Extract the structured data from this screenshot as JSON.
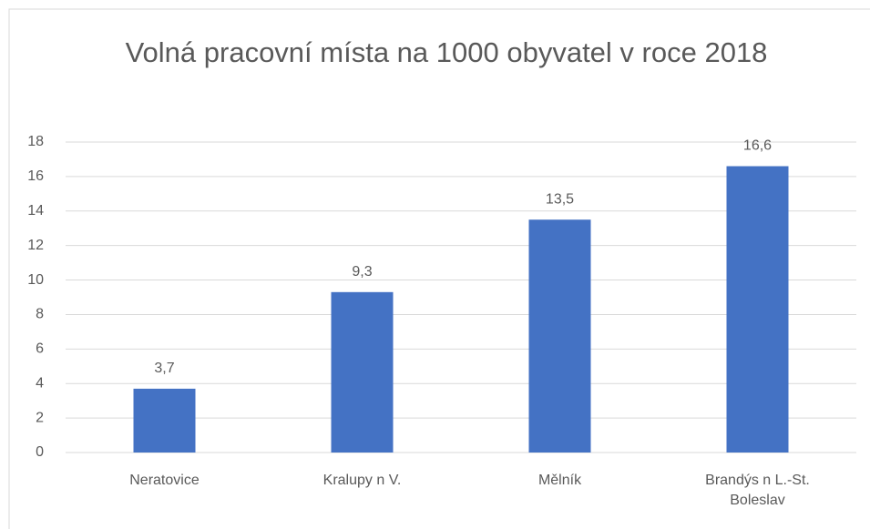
{
  "chart_data": {
    "type": "bar",
    "title": "Volná pracovní místa na 1000 obyvatel v roce 2018",
    "categories": [
      "Neratovice",
      "Kralupy n V.",
      "Mělník",
      "Brandýs n L.-St. Boleslav"
    ],
    "values": [
      3.7,
      9.3,
      13.5,
      16.6
    ],
    "value_labels": [
      "3,7",
      "9,3",
      "13,5",
      "16,6"
    ],
    "color": "#4472c4",
    "ylim": [
      0,
      18
    ],
    "yticks": [
      0,
      2,
      4,
      6,
      8,
      10,
      12,
      14,
      16,
      18
    ],
    "grid": true
  }
}
